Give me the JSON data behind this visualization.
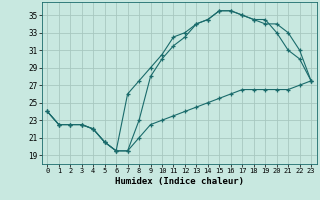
{
  "xlabel": "Humidex (Indice chaleur)",
  "ylabel": "",
  "xlim": [
    -0.5,
    23.5
  ],
  "ylim": [
    18,
    36.5
  ],
  "yticks": [
    19,
    21,
    23,
    25,
    27,
    29,
    31,
    33,
    35
  ],
  "xticks": [
    0,
    1,
    2,
    3,
    4,
    5,
    6,
    7,
    8,
    9,
    10,
    11,
    12,
    13,
    14,
    15,
    16,
    17,
    18,
    19,
    20,
    21,
    22,
    23
  ],
  "bg_color": "#c8e8e0",
  "grid_color": "#a8c8c0",
  "line_color": "#1a6b6b",
  "line1_x": [
    0,
    1,
    2,
    3,
    4,
    5,
    6,
    7,
    8,
    9,
    10,
    11,
    12,
    13,
    14,
    15,
    16,
    17,
    18,
    19,
    20,
    21,
    22,
    23
  ],
  "line1_y": [
    24.0,
    22.5,
    22.5,
    22.5,
    22.0,
    20.5,
    19.5,
    19.5,
    23.0,
    28.0,
    30.0,
    31.5,
    32.5,
    34.0,
    34.5,
    35.5,
    35.5,
    35.0,
    34.5,
    34.5,
    33.0,
    31.0,
    30.0,
    27.5
  ],
  "line2_x": [
    0,
    1,
    2,
    3,
    4,
    5,
    6,
    7,
    8,
    9,
    10,
    11,
    12,
    13,
    14,
    15,
    16,
    17,
    18,
    19,
    20,
    21,
    22,
    23
  ],
  "line2_y": [
    24.0,
    22.5,
    22.5,
    22.5,
    22.0,
    20.5,
    19.5,
    26.0,
    27.5,
    29.0,
    30.5,
    32.5,
    33.0,
    34.0,
    34.5,
    35.5,
    35.5,
    35.0,
    34.5,
    34.0,
    34.0,
    33.0,
    31.0,
    27.5
  ],
  "line3_x": [
    0,
    1,
    2,
    3,
    4,
    5,
    6,
    7,
    8,
    9,
    10,
    11,
    12,
    13,
    14,
    15,
    16,
    17,
    18,
    19,
    20,
    21,
    22,
    23
  ],
  "line3_y": [
    24.0,
    22.5,
    22.5,
    22.5,
    22.0,
    20.5,
    19.5,
    19.5,
    21.0,
    22.5,
    23.0,
    23.5,
    24.0,
    24.5,
    25.0,
    25.5,
    26.0,
    26.5,
    26.5,
    26.5,
    26.5,
    26.5,
    27.0,
    27.5
  ]
}
